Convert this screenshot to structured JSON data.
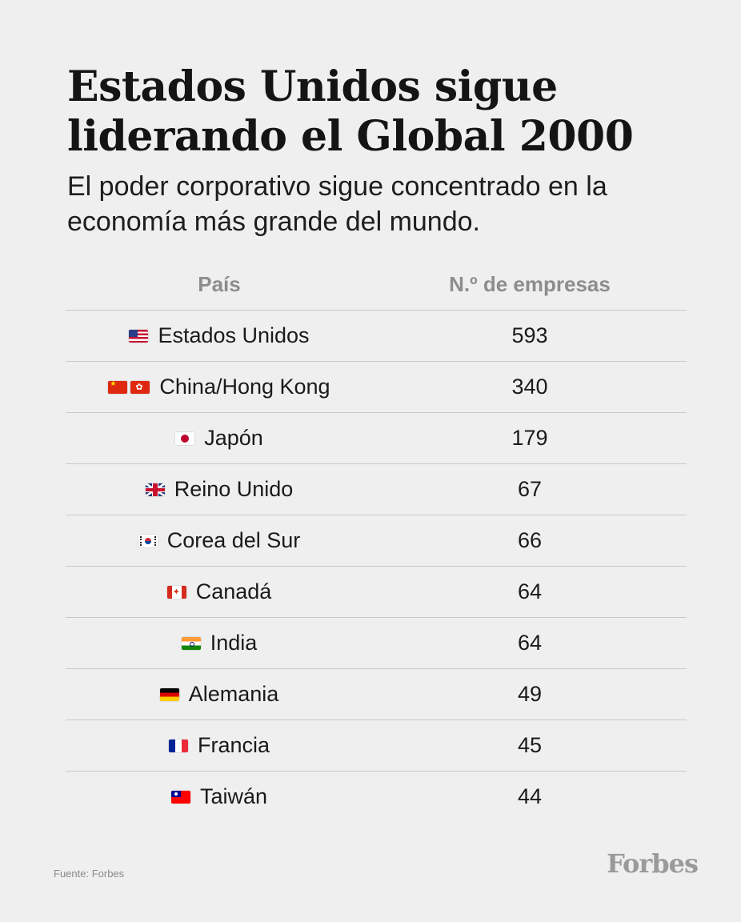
{
  "header": {
    "title": "Estados Unidos sigue liderando el Global 2000",
    "subtitle": "El poder corporativo sigue concentrado en la economía más grande del mundo."
  },
  "chart_data": {
    "type": "table",
    "columns": [
      "País",
      "N.º de empresas"
    ],
    "rows": [
      {
        "country": "Estados Unidos",
        "flags": [
          "us-flag-icon"
        ],
        "value": 593
      },
      {
        "country": "China/Hong Kong",
        "flags": [
          "china-flag-icon",
          "hong-kong-flag-icon"
        ],
        "value": 340
      },
      {
        "country": "Japón",
        "flags": [
          "japan-flag-icon"
        ],
        "value": 179
      },
      {
        "country": "Reino Unido",
        "flags": [
          "uk-flag-icon"
        ],
        "value": 67
      },
      {
        "country": "Corea del Sur",
        "flags": [
          "south-korea-flag-icon"
        ],
        "value": 66
      },
      {
        "country": "Canadá",
        "flags": [
          "canada-flag-icon"
        ],
        "value": 64
      },
      {
        "country": "India",
        "flags": [
          "india-flag-icon"
        ],
        "value": 64
      },
      {
        "country": "Alemania",
        "flags": [
          "germany-flag-icon"
        ],
        "value": 49
      },
      {
        "country": "Francia",
        "flags": [
          "france-flag-icon"
        ],
        "value": 45
      },
      {
        "country": "Taiwán",
        "flags": [
          "taiwan-flag-icon"
        ],
        "value": 44
      }
    ]
  },
  "footer": {
    "source": "Fuente: Forbes",
    "logo": "Forbes"
  },
  "colors": {
    "background": "#efefef",
    "header_text": "#8d8d8d",
    "divider": "#c9c9c9",
    "logo": "#9a9a9a"
  }
}
